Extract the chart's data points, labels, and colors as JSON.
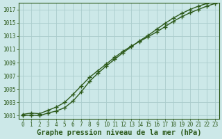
{
  "background_color": "#cce8e8",
  "plot_bg_color": "#cce8e8",
  "grid_color": "#aacccc",
  "line_color": "#2d5a1b",
  "xlabel": "Graphe pression niveau de la mer (hPa)",
  "xlim": [
    -0.5,
    23.5
  ],
  "ylim": [
    1000.5,
    1018.0
  ],
  "yticks": [
    1001,
    1003,
    1005,
    1007,
    1009,
    1011,
    1013,
    1015,
    1017
  ],
  "xticks": [
    0,
    1,
    2,
    3,
    4,
    5,
    6,
    7,
    8,
    9,
    10,
    11,
    12,
    13,
    14,
    15,
    16,
    17,
    18,
    19,
    20,
    21,
    22,
    23
  ],
  "line1_x": [
    0,
    1,
    2,
    3,
    4,
    5,
    6,
    7,
    8,
    9,
    10,
    11,
    12,
    13,
    14,
    15,
    16,
    17,
    18,
    19,
    20,
    21,
    22,
    23
  ],
  "line1_y": [
    1001.2,
    1001.4,
    1001.3,
    1001.8,
    1002.3,
    1003.0,
    1004.2,
    1005.5,
    1006.8,
    1007.8,
    1008.8,
    1009.8,
    1010.7,
    1011.5,
    1012.2,
    1012.9,
    1013.6,
    1014.4,
    1015.2,
    1015.9,
    1016.5,
    1017.0,
    1017.5,
    1017.9
  ],
  "line2_x": [
    0,
    1,
    2,
    3,
    4,
    5,
    6,
    7,
    8,
    9,
    10,
    11,
    12,
    13,
    14,
    15,
    16,
    17,
    18,
    19,
    20,
    21,
    22,
    23
  ],
  "line2_y": [
    1001.0,
    1001.1,
    1001.0,
    1001.4,
    1001.7,
    1002.2,
    1003.2,
    1004.6,
    1006.2,
    1007.4,
    1008.5,
    1009.5,
    1010.5,
    1011.4,
    1012.3,
    1013.1,
    1014.0,
    1014.9,
    1015.7,
    1016.4,
    1017.0,
    1017.5,
    1017.9,
    1018.2
  ],
  "title_fontsize": 7.5,
  "tick_fontsize": 5.5,
  "linewidth": 1.0,
  "markersize": 2.8
}
